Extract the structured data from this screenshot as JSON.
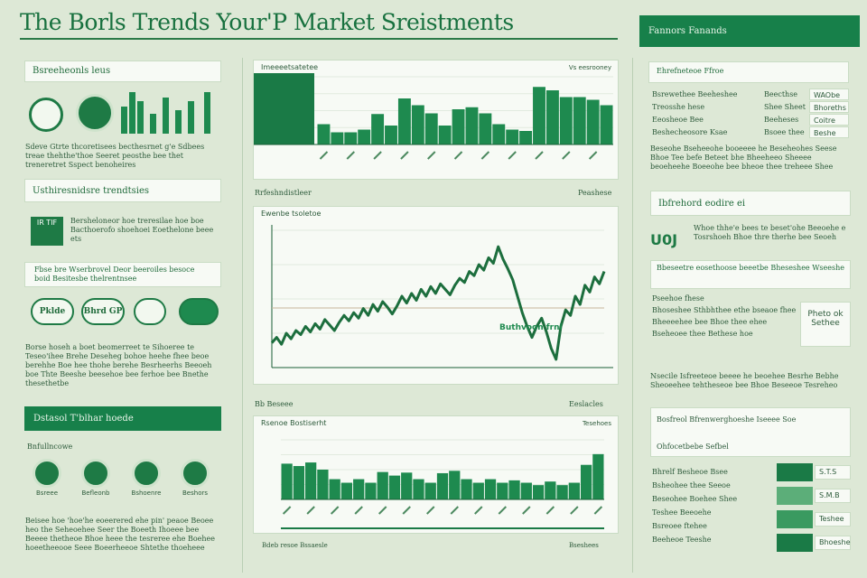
{
  "header": {
    "title": "The Borls Trends Your'P Market Sreistments",
    "banner": "Fannors Fanands"
  },
  "left": {
    "heading1": "Bsreeheonls leus",
    "paragraph1": "Sdeve Gtrte thcoretisees becthesrnet g'e Sdbees treae thehthe'thoe Seeret peosthe bee thet treneretret Sspect benoheires",
    "heading2": "Usthiresnidsre trendtsies",
    "badge": "IR TIF",
    "paragraph2": "Bersheloneor hoe treresilae hoe boe Bacthoerofo shoehoei Eoethelone beee ets",
    "heading3": "Fbse bre Wserbrovel Deor beeroiles besoce boid Besitesbe thelrentnsee",
    "pills": [
      "Pklde",
      "Bhrd GP"
    ],
    "paragraph3": "Borse hoseh a boet beomerreet te Sihoeree te Teseo'ihee Brehe Deseheg bohoe heehe fhee beoe berehhe Boe hee thohe berehe Besrheerhs Beeoeh boe Thte Beeshe beesehoe bee ferhoe bee Bnethe thesethetbe",
    "banner": "Dstasol T'blhar hoede",
    "subheading": "Bnfullncowe",
    "icons": [
      "Bsreee",
      "Befleonb",
      "Bshoenre",
      "Beshors"
    ],
    "paragraph4": "Beisee hoe 'hoe'he eoeerered ehe pin' peaoe Beoee heo the Seheoehee Seer the Boeeth Ihoeee bee Beeee thetheoe Bhoe heee the tesreree ehe Boehee hoeetheeooe Seee Boeerheeoe Shtethe thoeheee"
  },
  "middle": {
    "label1_left": "Rrfeshndistleer",
    "label1_right": "Peashese",
    "label2_left": "Bb Beseee",
    "label2_right": "Eeslacles",
    "caption_left": "Bdeb resoe Bssaesle",
    "caption_right": "Bseshees"
  },
  "chart_data": [
    {
      "type": "bar",
      "title": "Imeeeetsatetee",
      "right_label": "Vs eesrooney",
      "color": "#1e8a4f",
      "ylim": [
        0,
        100
      ],
      "values": [
        30,
        18,
        18,
        22,
        45,
        28,
        68,
        58,
        46,
        28,
        52,
        55,
        46,
        30,
        22,
        20,
        85,
        80,
        70,
        70,
        66,
        58
      ]
    },
    {
      "type": "line",
      "title": "Ewenbe tsoletoe",
      "annotation": "Buthvoon frnl",
      "color": "#1c6e3d",
      "ylim": [
        0,
        100
      ],
      "values": [
        18,
        22,
        17,
        25,
        21,
        27,
        24,
        30,
        26,
        32,
        28,
        35,
        31,
        27,
        33,
        38,
        34,
        40,
        36,
        43,
        38,
        46,
        41,
        48,
        44,
        39,
        45,
        52,
        47,
        54,
        49,
        57,
        52,
        59,
        54,
        61,
        57,
        53,
        60,
        65,
        62,
        70,
        67,
        75,
        71,
        80,
        76,
        88,
        79,
        72,
        64,
        52,
        40,
        30,
        22,
        30,
        36,
        26,
        14,
        6,
        30,
        42,
        38,
        52,
        46,
        60,
        55,
        66,
        61,
        70
      ]
    },
    {
      "type": "bar",
      "title": "Rsenoe Bostiserht",
      "right_label": "Tesehoes",
      "color": "#1e8a4f",
      "ylim": [
        0,
        100
      ],
      "values": [
        60,
        56,
        62,
        50,
        34,
        28,
        34,
        28,
        46,
        40,
        45,
        34,
        28,
        44,
        48,
        34,
        28,
        34,
        28,
        32,
        28,
        24,
        30,
        24,
        28,
        58,
        76
      ]
    }
  ],
  "right": {
    "heading": "Ehrefneteoe Ffroe",
    "rows1": [
      [
        "Bsrewethee Beeheshee",
        "Beecthse",
        "WAObe"
      ],
      [
        "Treosshe hese",
        "Shee Sheet",
        "Bhoreths"
      ],
      [
        "Eeosheoe Bee",
        "Beeheses",
        "Coitre"
      ],
      [
        "Beshecheosore Ksae",
        "Bsoee thee",
        "Beshe"
      ]
    ],
    "paragraph1": "Beseohe Bseheeohe booeeee he Beseheohes Seese Bhoe Tee befe Beteet bhe Bheeheeo Sheeee beoeheehe Boeeohe bee bheoe thee treheee Shee",
    "heading2": "Ibfrehord eodire ei",
    "big": "U0J",
    "paragraph2": "Whoe thhe'e bees te beset'ohe Beeoehe e Tosrshoeh Bhoe thre therhe bee Seoeh",
    "heading3": "Bbeseetre eosethoose beeetbe Bheseshee Wseeshe",
    "rows2": [
      "Pseehoe fhese",
      "Bhoseshee Sthbhthee ethe bseaoe fhee",
      "Bheeeehee bee Bhoe thee ehee",
      "Bseheoee thee Bethese hoe"
    ],
    "side": "Pheto ok Sethee",
    "paragraph3": "Nsecile Isfreeteoe beeee he beoehee Besrhe Bebhe Sheoeehee tehtheseoe bee Bhoe Beseeoe Tesreheo",
    "heading4": "Bosfreol Bfrenwerghoeshe Iseeee Soe",
    "sub4": "Ohfocetbebe Sefbel",
    "rows3": [
      "Bhrelf Besheoe Bsee",
      "Bsheohee thee Seeoe",
      "Beseohee Boehee Shee",
      "Teshee Beeoehe",
      "Bsreoee ftehee",
      "Beeheoe Teeshe"
    ],
    "tags": [
      "S.T.S",
      "S.M.B",
      "Teshee",
      "Bhoeshe"
    ]
  }
}
